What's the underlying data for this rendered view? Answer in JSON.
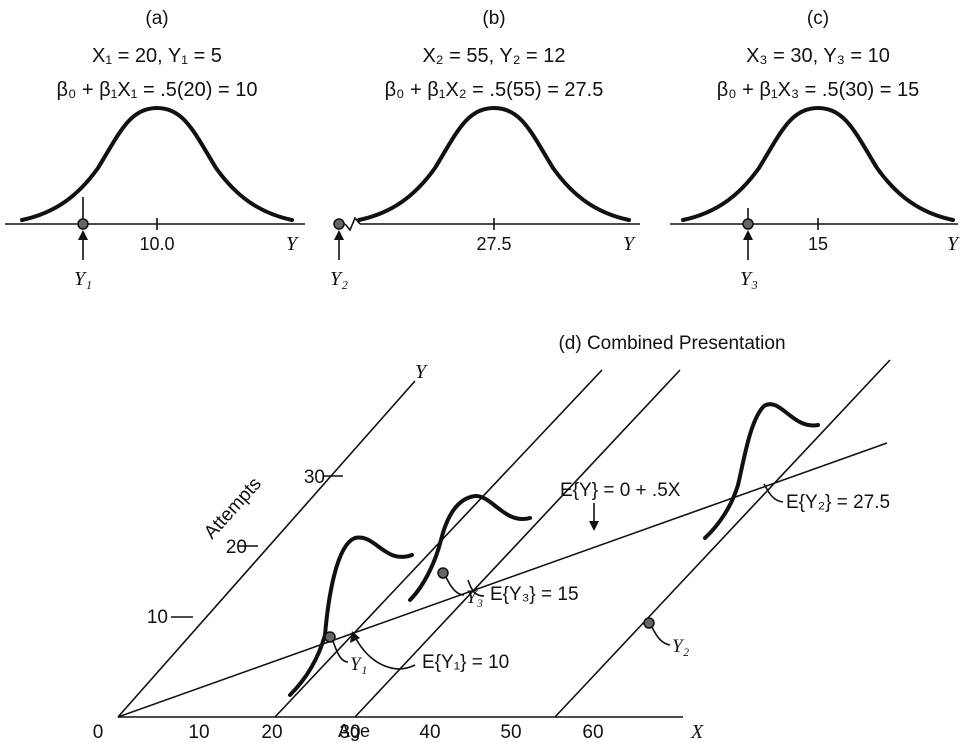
{
  "panels": [
    {
      "label": "(a)",
      "line1": "X₁ = 20,  Y₁ = 5",
      "line2": "β₀ + β₁X₁ = .5(20) = 10",
      "mean_label": "10.0",
      "axis_label": "Y",
      "obs_label": "Y₁"
    },
    {
      "label": "(b)",
      "line1": "X₂ = 55,  Y₂ = 12",
      "line2": "β₀ + β₁X₂ = .5(55) = 27.5",
      "mean_label": "27.5",
      "axis_label": "Y",
      "obs_label": "Y₂"
    },
    {
      "label": "(c)",
      "line1": "X₃ = 30,  Y₃ = 10",
      "line2": "β₀ + β₁X₃ = .5(30) = 15",
      "mean_label": "15",
      "axis_label": "Y",
      "obs_label": "Y₃"
    }
  ],
  "combined": {
    "title": "(d) Combined Presentation",
    "x_axis_label": "Age",
    "x_axis_symbol": "X",
    "y_axis_label": "Attempts",
    "y_axis_symbol": "Y",
    "x_ticks": [
      "0",
      "10",
      "20",
      "30",
      "40",
      "50",
      "60"
    ],
    "y_ticks": [
      "10",
      "20",
      "30"
    ],
    "regression_label": "E{Y} = 0 + .5X",
    "mean_labels": [
      "E{Y₁} = 10",
      "E{Y₃} = 15",
      "E{Y₂} = 27.5"
    ],
    "obs_labels": [
      "Y₁",
      "Y₃",
      "Y₂"
    ]
  },
  "colors": {
    "ink": "#111111",
    "point_fill": "#666666"
  }
}
